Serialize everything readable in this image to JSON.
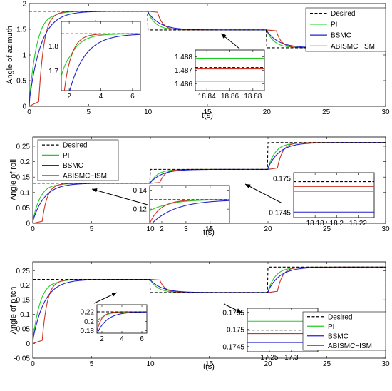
{
  "colors": {
    "desired": "#000000",
    "pi": "#22cc22",
    "bsmc": "#2222cc",
    "abismc": "#cc3322"
  },
  "legend_names": [
    "Desired",
    "PI",
    "BSMC",
    "ABISMC−ISM"
  ],
  "chart_data": [
    {
      "type": "line",
      "xlabel": "t(s)",
      "ylabel": "Angle of azimuth",
      "xlim": [
        0,
        30
      ],
      "ylim": [
        0,
        2
      ],
      "xticks": [
        0,
        5,
        10,
        15,
        20,
        25,
        30
      ],
      "yticks": [
        0,
        0.5,
        1,
        1.5,
        2
      ],
      "ytick_labels": [
        "0",
        "0.5",
        "1",
        "1.5",
        "2"
      ],
      "grid": false,
      "legend_position": "top-right",
      "setpoints": [
        [
          0,
          1.85
        ],
        [
          10,
          1.487
        ],
        [
          20,
          1.14
        ]
      ],
      "series": [
        {
          "name": "Desired",
          "style": "dashed"
        },
        {
          "name": "PI",
          "tau": 0.7,
          "delay": 0.0,
          "overshoot": 0.04
        },
        {
          "name": "BSMC",
          "tau": 1.0,
          "delay": 0.0,
          "overshoot": 0.0
        },
        {
          "name": "ABISMC−ISM",
          "tau": 0.45,
          "delay": 0.8,
          "overshoot": 0.01
        }
      ],
      "insets": [
        {
          "xlim": [
            1.5,
            6.5
          ],
          "ylim": [
            1.62,
            1.9
          ],
          "xticks": [
            2,
            4,
            6
          ],
          "yticks": [
            1.7,
            1.8
          ],
          "ytick_labels": [
            "1.7",
            "1.8"
          ],
          "xtick_labels": [
            "2",
            "4",
            "6"
          ],
          "mode": "zoom"
        },
        {
          "xlim": [
            18.83,
            18.89
          ],
          "ylim": [
            1.4855,
            1.4885
          ],
          "xticks": [
            18.84,
            18.86,
            18.88
          ],
          "yticks": [
            1.486,
            1.487,
            1.488
          ],
          "ytick_labels": [
            "1.486",
            "1.487",
            "1.488"
          ],
          "xtick_labels": [
            "18.84",
            "18.86",
            "18.88"
          ],
          "mode": "flat",
          "levels": {
            "Desired": 1.4872,
            "PI": 1.4879,
            "BSMC": 1.4862,
            "ABISMC−ISM": 1.4871
          }
        }
      ]
    },
    {
      "type": "line",
      "xlabel": "t(s)",
      "ylabel": "Angle of roll",
      "xlim": [
        0,
        30
      ],
      "ylim": [
        0,
        0.28
      ],
      "xticks": [
        0,
        5,
        10,
        15,
        20,
        25,
        30
      ],
      "yticks": [
        0,
        0.05,
        0.1,
        0.15,
        0.2,
        0.25
      ],
      "ytick_labels": [
        "0",
        "0.05",
        "0.1",
        "0.15",
        "0.2",
        "0.25"
      ],
      "grid": false,
      "legend_position": "top-left",
      "setpoints": [
        [
          0,
          0.13
        ],
        [
          10,
          0.175
        ],
        [
          20,
          0.262
        ]
      ],
      "series": [
        {
          "name": "Desired",
          "style": "dashed"
        },
        {
          "name": "PI",
          "tau": 0.7,
          "delay": 0.0,
          "overshoot": 0.04
        },
        {
          "name": "BSMC",
          "tau": 1.0,
          "delay": 0.0,
          "overshoot": 0.0
        },
        {
          "name": "ABISMC−ISM",
          "tau": 0.45,
          "delay": 0.8,
          "overshoot": 0.01
        }
      ],
      "insets": [
        {
          "xlim": [
            1.5,
            4.8
          ],
          "ylim": [
            0.105,
            0.145
          ],
          "xticks": [
            2,
            3,
            4
          ],
          "yticks": [
            0.12,
            0.14
          ],
          "ytick_labels": [
            "0.12",
            "0.14"
          ],
          "xtick_labels": [
            "2",
            "3",
            "4"
          ],
          "mode": "zoom"
        },
        {
          "xlim": [
            18.16,
            18.235
          ],
          "ylim": [
            0.17443,
            0.17508
          ],
          "xticks": [
            18.18,
            18.2,
            18.22
          ],
          "yticks": [
            0.1745,
            0.175
          ],
          "ytick_labels": [
            "0.1745",
            "0.175"
          ],
          "xtick_labels": [
            "18.18",
            "18.2",
            "18.22"
          ],
          "mode": "flat",
          "levels": {
            "Desired": 0.17495,
            "PI": 0.17481,
            "BSMC": 0.17451,
            "ABISMC−ISM": 0.17488
          }
        }
      ]
    },
    {
      "type": "line",
      "xlabel": "t(s)",
      "ylabel": "Angle of pitch",
      "xlim": [
        0,
        30
      ],
      "ylim": [
        -0.05,
        0.28
      ],
      "xticks": [
        0,
        5,
        10,
        15,
        20,
        25,
        30
      ],
      "yticks": [
        -0.05,
        0,
        0.05,
        0.1,
        0.15,
        0.2,
        0.25
      ],
      "ytick_labels": [
        "-0.05",
        "0",
        "0.05",
        "0.1",
        "0.15",
        "0.2",
        "0.25"
      ],
      "grid": false,
      "legend_position": "right",
      "setpoints": [
        [
          0,
          0.22
        ],
        [
          10,
          0.175
        ],
        [
          20,
          0.262
        ]
      ],
      "series": [
        {
          "name": "Desired",
          "style": "dashed"
        },
        {
          "name": "PI",
          "tau": 0.7,
          "delay": 0.0,
          "overshoot": 0.04
        },
        {
          "name": "BSMC",
          "tau": 1.0,
          "delay": 0.0,
          "overshoot": 0.0
        },
        {
          "name": "ABISMC−ISM",
          "tau": 0.45,
          "delay": 0.8,
          "overshoot": 0.01
        }
      ],
      "insets": [
        {
          "xlim": [
            1.5,
            6.5
          ],
          "ylim": [
            0.175,
            0.235
          ],
          "xticks": [
            2,
            4,
            6
          ],
          "yticks": [
            0.18,
            0.2,
            0.22
          ],
          "ytick_labels": [
            "0.18",
            "0.2",
            "0.22"
          ],
          "xtick_labels": [
            "2",
            "4",
            "6"
          ],
          "mode": "zoom"
        },
        {
          "xlim": [
            17.2,
            17.36
          ],
          "ylim": [
            0.17435,
            0.17562
          ],
          "xticks": [
            17.25,
            17.3
          ],
          "yticks": [
            0.1745,
            0.175,
            0.1755
          ],
          "ytick_labels": [
            "0.1745",
            "0.175",
            "0.1755"
          ],
          "xtick_labels": [
            "17.25",
            "17.3"
          ],
          "mode": "flat",
          "levels": {
            "Desired": 0.17498,
            "PI": 0.17524,
            "BSMC": 0.17462,
            "ABISMC−ISM": 0.17488
          }
        }
      ]
    }
  ]
}
